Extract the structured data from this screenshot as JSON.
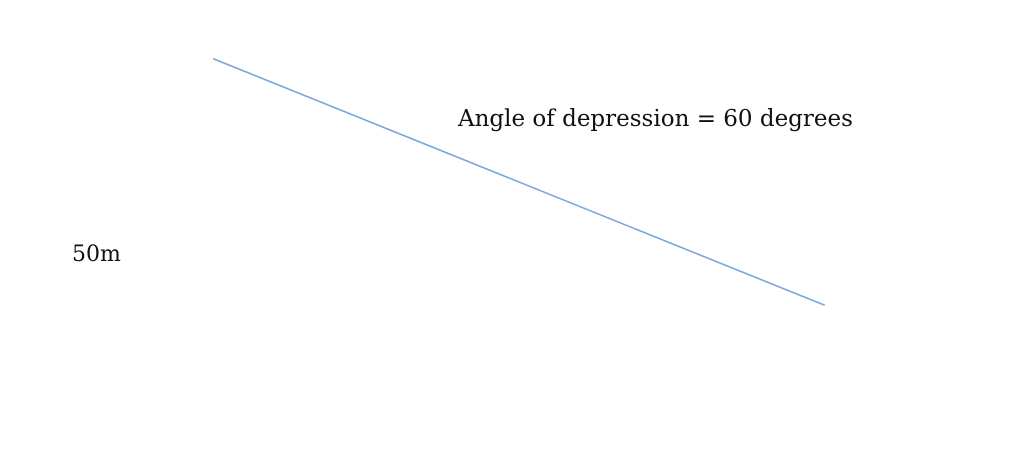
{
  "diagram": {
    "angle_label": "Angle of depression = 60 degrees",
    "height_label": "50m",
    "line_color": "#7aa6d6"
  }
}
